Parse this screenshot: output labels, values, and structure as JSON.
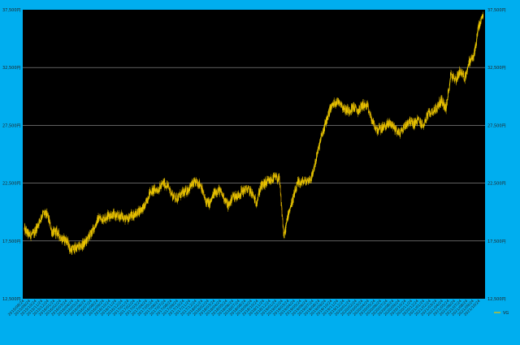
{
  "chart_data": {
    "type": "candlestick",
    "title": "",
    "xlabel": "",
    "ylabel": "",
    "ylim": [
      12500,
      37500
    ],
    "y_ticks": [
      12500,
      17500,
      22500,
      27500,
      32500,
      37500
    ],
    "y_tick_labels": [
      "12,500円",
      "17,500円",
      "22,500円",
      "27,500円",
      "32,500円",
      "37,500円"
    ],
    "grid": true,
    "legend": {
      "position": "bottom-right",
      "entries": [
        "VG"
      ]
    },
    "x_tick_labels": [
      "2015/08/24",
      "2015/09/24",
      "2015/10/24",
      "2015/11/24",
      "2015/12/24",
      "2016/01/24",
      "2016/02/24",
      "2016/03/24",
      "2016/04/24",
      "2016/05/24",
      "2016/06/24",
      "2016/07/24",
      "2016/08/24",
      "2016/09/24",
      "2016/10/24",
      "2016/11/24",
      "2016/12/24",
      "2017/01/24",
      "2017/02/24",
      "2017/03/24",
      "2017/04/24",
      "2017/05/24",
      "2017/06/24",
      "2017/07/24",
      "2017/08/24",
      "2017/09/24",
      "2017/10/24",
      "2017/11/24",
      "2017/12/24",
      "2018/01/24",
      "2018/02/24",
      "2018/03/24",
      "2018/04/24",
      "2018/05/24",
      "2018/06/24",
      "2018/07/24",
      "2018/08/24",
      "2018/09/24",
      "2018/10/24",
      "2018/11/24",
      "2018/12/24",
      "2019/01/24",
      "2019/02/24",
      "2019/03/24",
      "2019/04/24",
      "2019/05/24",
      "2019/06/24",
      "2019/07/24",
      "2019/08/24",
      "2019/09/24",
      "2019/10/24",
      "2019/11/24",
      "2019/12/24",
      "2020/01/24",
      "2020/02/24",
      "2020/03/24",
      "2020/04/24",
      "2020/05/24",
      "2020/06/24",
      "2020/07/24",
      "2020/08/24",
      "2020/09/24",
      "2020/10/24",
      "2020/11/24",
      "2020/12/24",
      "2021/01/24",
      "2021/02/24",
      "2021/03/24",
      "2021/04/24",
      "2021/05/24",
      "2021/06/24",
      "2021/07/24",
      "2021/08/24",
      "2021/09/24",
      "2021/10/24"
    ],
    "series": [
      {
        "name": "VG",
        "color": "#e8c300",
        "values": [
          18500,
          18000,
          18100,
          19000,
          19900,
          19700,
          18200,
          18300,
          17700,
          17600,
          16700,
          16900,
          17000,
          17300,
          17900,
          18600,
          19500,
          19400,
          19700,
          19800,
          19600,
          19700,
          19300,
          19700,
          19800,
          20200,
          20500,
          21700,
          21900,
          22000,
          22500,
          22200,
          21400,
          21200,
          21600,
          21800,
          22300,
          22600,
          22400,
          21000,
          20700,
          21700,
          21900,
          21300,
          20500,
          21400,
          21400,
          21800,
          22000,
          21700,
          20800,
          22200,
          22500,
          22700,
          23000,
          22800,
          17800,
          20000,
          21200,
          22500,
          22600,
          22700,
          23000,
          24700,
          26400,
          27700,
          29000,
          29500,
          29600,
          28900,
          28800,
          29100,
          28700,
          29300,
          29100,
          27900,
          27100,
          27200,
          27500,
          27700,
          27200,
          26800,
          27400,
          27900,
          27600,
          28000,
          27400,
          28400,
          28700,
          29000,
          29700,
          28900,
          32000,
          31400,
          32200,
          31600,
          33000,
          33500,
          36000,
          37000
        ]
      }
    ]
  }
}
